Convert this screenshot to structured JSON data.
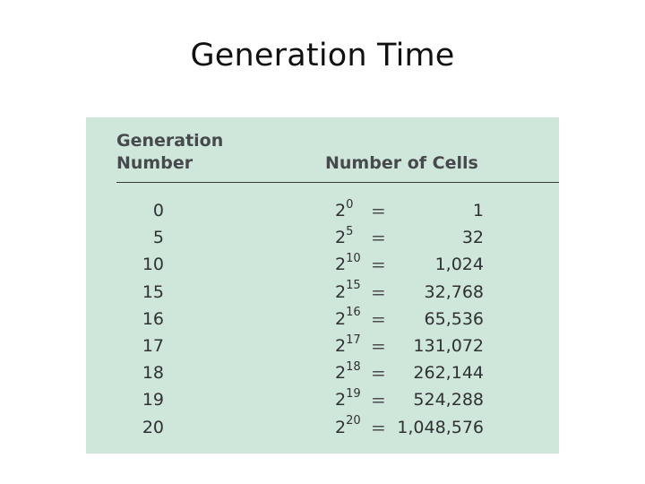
{
  "slide": {
    "title": "Generation Time"
  },
  "table": {
    "header": {
      "generation_line1": "Generation",
      "generation_line2": "Number",
      "cells": "Number of Cells"
    },
    "equals_sign": "=",
    "base": "2",
    "rows": [
      {
        "generation": "0",
        "exponent": "0",
        "cells": "1"
      },
      {
        "generation": "5",
        "exponent": "5",
        "cells": "32"
      },
      {
        "generation": "10",
        "exponent": "10",
        "cells": "1,024"
      },
      {
        "generation": "15",
        "exponent": "15",
        "cells": "32,768"
      },
      {
        "generation": "16",
        "exponent": "16",
        "cells": "65,536"
      },
      {
        "generation": "17",
        "exponent": "17",
        "cells": "131,072"
      },
      {
        "generation": "18",
        "exponent": "18",
        "cells": "262,144"
      },
      {
        "generation": "19",
        "exponent": "19",
        "cells": "524,288"
      },
      {
        "generation": "20",
        "exponent": "20",
        "cells": "1,048,576"
      }
    ]
  },
  "colors": {
    "panel_background": "#cfe6db",
    "header_text": "#474a4c",
    "body_text": "#2f3133"
  }
}
